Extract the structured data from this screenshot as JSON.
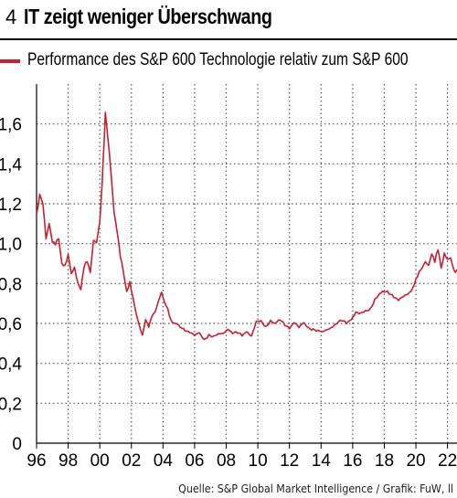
{
  "figure_number": "4",
  "title": "IT zeigt weniger Überschwang",
  "source": "Quelle: S&P Global Market Intelligence / Grafik: FuW, ll",
  "colors": {
    "series": "#c8202f",
    "grid": "#555555",
    "axis": "#000000"
  },
  "chart_data": {
    "type": "line",
    "ylim": [
      0,
      1.8
    ],
    "xlim": [
      1996,
      2022.6
    ],
    "y_ticks": [
      0,
      0.2,
      0.4,
      0.6,
      0.8,
      1.0,
      1.2,
      1.4,
      1.6
    ],
    "y_tick_labels": [
      "0",
      "0,2",
      "0,4",
      "0,6",
      "0,8",
      "1,0",
      "1,2",
      "1,4",
      "1,6"
    ],
    "x_ticks": [
      1996,
      1998,
      2000,
      2002,
      2004,
      2006,
      2008,
      2010,
      2012,
      2014,
      2016,
      2018,
      2020,
      2022
    ],
    "x_tick_labels": [
      "96",
      "98",
      "00",
      "02",
      "04",
      "06",
      "08",
      "10",
      "12",
      "14",
      "16",
      "18",
      "20",
      "22"
    ],
    "grid": true,
    "series": [
      {
        "name": "Performance des S&P 600 Technologie relativ zum S&P 600",
        "x": [
          1996.0,
          1996.2,
          1996.4,
          1996.6,
          1996.8,
          1997.0,
          1997.2,
          1997.4,
          1997.6,
          1997.8,
          1998.0,
          1998.2,
          1998.4,
          1998.6,
          1998.8,
          1999.0,
          1999.2,
          1999.4,
          1999.6,
          1999.8,
          2000.0,
          2000.1,
          2000.2,
          2000.35,
          2000.5,
          2000.7,
          2000.9,
          2001.1,
          2001.3,
          2001.5,
          2001.7,
          2001.9,
          2002.1,
          2002.3,
          2002.5,
          2002.7,
          2002.9,
          2003.1,
          2003.3,
          2003.5,
          2003.7,
          2003.9,
          2004.1,
          2004.3,
          2004.5,
          2004.7,
          2004.9,
          2005.1,
          2005.4,
          2005.7,
          2006.0,
          2006.3,
          2006.6,
          2006.9,
          2007.2,
          2007.5,
          2007.8,
          2008.1,
          2008.4,
          2008.7,
          2009.0,
          2009.3,
          2009.6,
          2009.9,
          2010.2,
          2010.5,
          2010.8,
          2011.1,
          2011.4,
          2011.7,
          2012.0,
          2012.3,
          2012.6,
          2012.9,
          2013.2,
          2013.5,
          2013.8,
          2014.1,
          2014.4,
          2014.7,
          2015.0,
          2015.3,
          2015.6,
          2015.9,
          2016.2,
          2016.5,
          2016.8,
          2017.1,
          2017.4,
          2017.7,
          2018.0,
          2018.3,
          2018.6,
          2018.9,
          2019.2,
          2019.5,
          2019.8,
          2020.0,
          2020.2,
          2020.4,
          2020.6,
          2020.8,
          2021.0,
          2021.2,
          2021.4,
          2021.6,
          2021.8,
          2022.0,
          2022.2,
          2022.4,
          2022.6
        ],
        "y": [
          1.15,
          1.24,
          1.21,
          1.05,
          1.12,
          1.0,
          0.98,
          1.02,
          0.9,
          0.88,
          0.93,
          0.85,
          0.9,
          0.82,
          0.77,
          0.88,
          0.92,
          0.86,
          1.0,
          0.98,
          1.1,
          1.25,
          1.4,
          1.65,
          1.55,
          1.4,
          1.18,
          1.05,
          0.92,
          0.85,
          0.76,
          0.8,
          0.72,
          0.65,
          0.6,
          0.55,
          0.62,
          0.58,
          0.64,
          0.66,
          0.7,
          0.74,
          0.7,
          0.68,
          0.62,
          0.6,
          0.6,
          0.59,
          0.57,
          0.55,
          0.53,
          0.55,
          0.52,
          0.54,
          0.53,
          0.55,
          0.56,
          0.58,
          0.55,
          0.55,
          0.54,
          0.56,
          0.53,
          0.6,
          0.61,
          0.59,
          0.62,
          0.6,
          0.62,
          0.6,
          0.58,
          0.6,
          0.57,
          0.6,
          0.58,
          0.57,
          0.56,
          0.56,
          0.58,
          0.59,
          0.6,
          0.61,
          0.6,
          0.62,
          0.65,
          0.64,
          0.66,
          0.68,
          0.73,
          0.75,
          0.76,
          0.76,
          0.74,
          0.71,
          0.72,
          0.74,
          0.78,
          0.82,
          0.85,
          0.88,
          0.93,
          0.91,
          0.95,
          0.9,
          0.97,
          0.88,
          0.94,
          0.9,
          0.92,
          0.88,
          0.87
        ]
      }
    ]
  }
}
